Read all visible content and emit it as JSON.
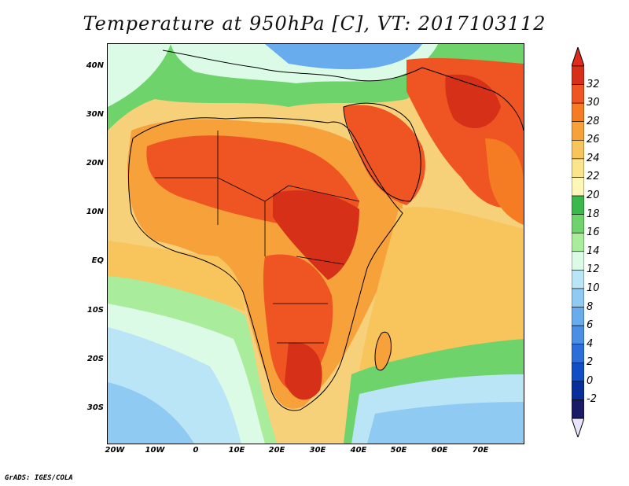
{
  "title": "Temperature at 950hPa [C], VT: 2017103112",
  "credit": "GrADS: IGES/COLA",
  "map": {
    "lat_range": [
      -36,
      46
    ],
    "lon_range": [
      -22,
      80
    ],
    "lat_ticks": [
      "40N",
      "30N",
      "20N",
      "10N",
      "EQ",
      "10S",
      "20S",
      "30S"
    ],
    "lon_ticks": [
      "20W",
      "10W",
      "0",
      "10E",
      "20E",
      "30E",
      "40E",
      "50E",
      "60E",
      "70E"
    ]
  },
  "colorbar": {
    "labels": [
      "32",
      "30",
      "28",
      "26",
      "24",
      "22",
      "20",
      "18",
      "16",
      "14",
      "12",
      "10",
      "8",
      "6",
      "4",
      "2",
      "0",
      "-2"
    ],
    "colors": [
      "#d63019",
      "#ef5522",
      "#f57c23",
      "#f7a13a",
      "#f8c45c",
      "#fae58d",
      "#fef7b7",
      "#3bb84c",
      "#6dd36a",
      "#a9ec9b",
      "#dcfbe6",
      "#b9e5f7",
      "#8fcaf2",
      "#69acee",
      "#4a8ee5",
      "#2b6ed9",
      "#0f4ec4",
      "#0a2e99",
      "#1a1a66"
    ],
    "max_color": "#e02a1b",
    "min_color": "#e8e4fb"
  }
}
